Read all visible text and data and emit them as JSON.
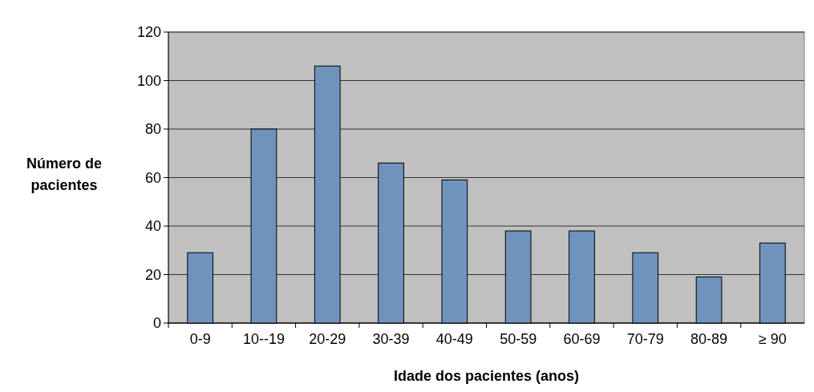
{
  "chart_data": {
    "type": "bar",
    "xlabel": "Idade dos pacientes (anos)",
    "ylabel": "Número de pacientes",
    "categories": [
      "0-9",
      "10--19",
      "20-29",
      "30-39",
      "40-49",
      "50-59",
      "60-69",
      "70-79",
      "80-89",
      "≥ 90"
    ],
    "values": [
      29,
      80,
      106,
      66,
      59,
      38,
      38,
      29,
      19,
      33
    ],
    "color": "#6f93bd",
    "ylim": [
      0,
      120
    ],
    "yticks": [
      0,
      20,
      40,
      60,
      80,
      100,
      120
    ],
    "grid": "y"
  }
}
